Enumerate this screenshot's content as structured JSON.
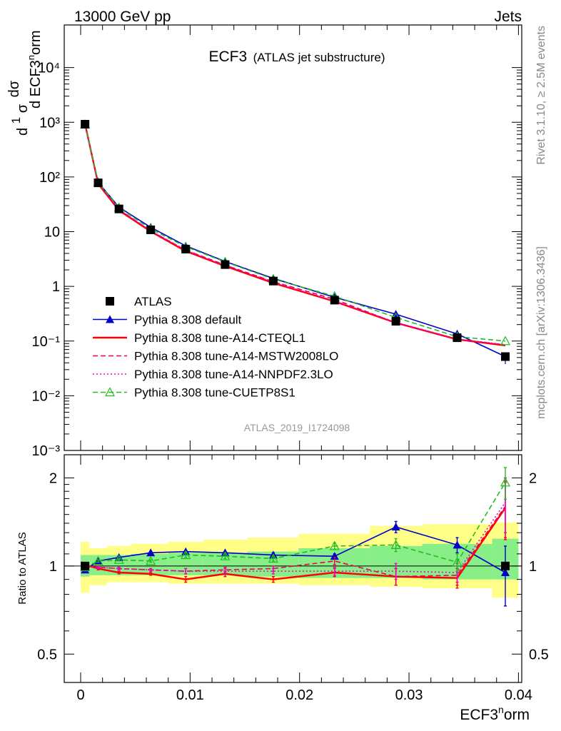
{
  "header": {
    "left": "13000 GeV pp",
    "right": "Jets",
    "title_main": "ECF3",
    "title_sub": "(ATLAS jet substructure)",
    "side_rivet": "Rivet 3.1.10, ≥ 2.5M events",
    "side_mcplots": "mcplots.cern.ch [arXiv:1306.3436]",
    "analysis_id": "ATLAS_2019_I1724098"
  },
  "axes": {
    "y_top_label": "1/σ dσ/d ECF3norm",
    "y_bottom_label": "Ratio to ATLAS",
    "x_label": "ECF3norm",
    "x_ticks": [
      "0",
      "0.01",
      "0.02",
      "0.03",
      "0.04"
    ],
    "y_top_ticks": [
      "10⁻³",
      "10⁻²",
      "10⁻¹",
      "1",
      "10",
      "10²",
      "10³",
      "10⁴"
    ],
    "y_ratio_ticks": [
      "0.5",
      "1",
      "2"
    ]
  },
  "chart_data": {
    "type": "line",
    "x_scale": "linear",
    "y_scale_top": "log",
    "y_scale_ratio": "log",
    "xlim": [
      -0.0015,
      0.0403
    ],
    "ylim_top": [
      0.001,
      60000
    ],
    "ylim_ratio": [
      0.4,
      2.4
    ],
    "x": [
      0.0004,
      0.0016,
      0.0035,
      0.0064,
      0.0096,
      0.0132,
      0.0176,
      0.0232,
      0.0288,
      0.0344,
      0.0388
    ],
    "bin_edges": [
      0.0,
      0.0008,
      0.0024,
      0.0046,
      0.008,
      0.0112,
      0.0152,
      0.0199,
      0.0264,
      0.0312,
      0.0376,
      0.04
    ],
    "band_inner": [
      [
        0.92,
        1.09
      ],
      [
        0.93,
        1.09
      ],
      [
        0.93,
        1.09
      ],
      [
        0.93,
        1.1
      ],
      [
        0.93,
        1.11
      ],
      [
        0.93,
        1.11
      ],
      [
        0.92,
        1.12
      ],
      [
        0.91,
        1.15
      ],
      [
        0.91,
        1.17
      ],
      [
        0.9,
        1.19
      ],
      [
        0.9,
        1.24
      ]
    ],
    "band_outer": [
      [
        0.81,
        1.21
      ],
      [
        0.86,
        1.15
      ],
      [
        0.88,
        1.17
      ],
      [
        0.88,
        1.19
      ],
      [
        0.87,
        1.21
      ],
      [
        0.87,
        1.23
      ],
      [
        0.87,
        1.25
      ],
      [
        0.86,
        1.29
      ],
      [
        0.85,
        1.37
      ],
      [
        0.84,
        1.39
      ],
      [
        0.78,
        1.41
      ]
    ],
    "series": [
      {
        "name": "ATLAS",
        "color": "#000000",
        "style": "data",
        "values": [
          920,
          78,
          26,
          10.8,
          4.8,
          2.5,
          1.25,
          0.56,
          0.23,
          0.115,
          0.052
        ],
        "ratio": [
          1.0,
          1.0,
          1.0,
          1.0,
          1.0,
          1.0,
          1.0,
          1.0,
          1.0,
          1.0,
          1.0
        ],
        "ratio_err": [
          0.0,
          0.0,
          0.0,
          0.0,
          0.0,
          0.0,
          0.0,
          0.0,
          0.0,
          0.0,
          0.0
        ],
        "err_low": [
          0,
          0,
          0,
          0,
          0,
          0,
          0,
          0,
          0,
          0,
          0.014
        ],
        "err_high": [
          0,
          0,
          0,
          0,
          0,
          0,
          0,
          0,
          0,
          0,
          0.006
        ]
      },
      {
        "name": "Pythia 8.308 default",
        "color": "#0000cc",
        "style": "solid",
        "marker": "triangle-filled",
        "values": [
          900,
          80,
          28,
          12,
          5.5,
          2.85,
          1.4,
          0.63,
          0.31,
          0.135,
          0.052
        ],
        "ratio": [
          0.97,
          1.04,
          1.07,
          1.11,
          1.12,
          1.11,
          1.09,
          1.08,
          1.36,
          1.18,
          0.95
        ],
        "ratio_err": [
          0.01,
          0.01,
          0.01,
          0.01,
          0.01,
          0.01,
          0.02,
          0.02,
          0.06,
          0.07,
          0.22
        ]
      },
      {
        "name": "Pythia 8.308 tune-A14-CTEQL1",
        "color": "#ff0000",
        "style": "solid",
        "marker": "none",
        "values": [
          930,
          75,
          24.5,
          10.1,
          4.4,
          2.35,
          1.15,
          0.53,
          0.215,
          0.107,
          0.083
        ],
        "ratio": [
          1.01,
          0.98,
          0.95,
          0.94,
          0.9,
          0.94,
          0.9,
          0.95,
          0.92,
          0.91,
          1.58
        ],
        "ratio_err": [
          0.01,
          0.01,
          0.01,
          0.01,
          0.02,
          0.02,
          0.02,
          0.03,
          0.06,
          0.07,
          0.35
        ]
      },
      {
        "name": "Pythia 8.308 tune-A14-MSTW2008LO",
        "color": "#ee0055",
        "style": "dashed",
        "marker": "none",
        "values": [
          935,
          77,
          25.5,
          10.3,
          4.6,
          2.45,
          1.22,
          0.58,
          0.215,
          0.108,
          0.085
        ],
        "ratio": [
          1.0,
          0.99,
          0.98,
          0.97,
          0.96,
          0.97,
          0.98,
          1.04,
          0.92,
          0.93,
          1.6
        ],
        "ratio_err": [
          0.01,
          0.01,
          0.01,
          0.01,
          0.02,
          0.02,
          0.02,
          0.03,
          0.06,
          0.07,
          0.35
        ]
      },
      {
        "name": "Pythia 8.308 tune-A14-NNPDF2.3LO",
        "color": "#ee00cc",
        "style": "dotted",
        "marker": "none",
        "values": [
          935,
          77,
          25.5,
          10.4,
          4.6,
          2.4,
          1.2,
          0.54,
          0.22,
          0.109,
          0.086
        ],
        "ratio": [
          1.0,
          0.99,
          0.98,
          0.97,
          0.96,
          0.96,
          0.96,
          0.96,
          0.96,
          0.95,
          1.65
        ],
        "ratio_err": [
          0.01,
          0.01,
          0.01,
          0.01,
          0.02,
          0.02,
          0.02,
          0.03,
          0.06,
          0.07,
          0.35
        ]
      },
      {
        "name": "Pythia 8.308 tune-CUETP8S1",
        "color": "#22bb22",
        "style": "dashed",
        "marker": "triangle-open",
        "values": [
          910,
          80,
          27.5,
          11.2,
          5.3,
          2.8,
          1.36,
          0.66,
          0.27,
          0.12,
          0.1
        ],
        "ratio": [
          0.99,
          1.04,
          1.05,
          1.04,
          1.09,
          1.08,
          1.06,
          1.17,
          1.18,
          1.03,
          1.93
        ],
        "ratio_err": [
          0.01,
          0.01,
          0.01,
          0.01,
          0.02,
          0.02,
          0.02,
          0.03,
          0.06,
          0.07,
          0.24
        ]
      }
    ]
  }
}
